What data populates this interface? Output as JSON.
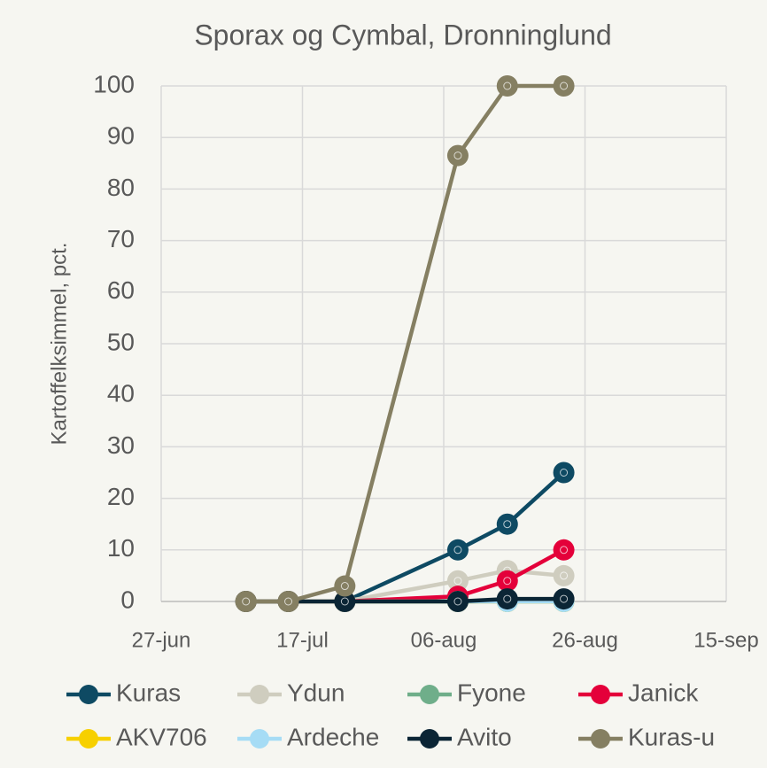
{
  "chart_data": {
    "type": "line",
    "title": "Sporax og Cymbal, Dronninglund",
    "y_label": "Kartoffelksimmel, pct.",
    "x": [
      "09-jul",
      "15-jul",
      "23-jul",
      "08-aug",
      "15-aug",
      "23-aug"
    ],
    "series": [
      {
        "name": "Kuras",
        "color": "#0e4a63",
        "values": [
          0,
          0,
          0,
          10,
          15,
          25
        ]
      },
      {
        "name": "Ydun",
        "color": "#cfcdbf",
        "values": [
          0,
          0,
          0,
          4,
          6,
          5
        ]
      },
      {
        "name": "Fyone",
        "color": "#6fae8a",
        "values": [
          0,
          0,
          0,
          0,
          0,
          0
        ]
      },
      {
        "name": "Janick",
        "color": "#e4003a",
        "values": [
          0,
          0,
          0,
          1,
          4,
          10
        ]
      },
      {
        "name": "AKV706",
        "color": "#f7d000",
        "values": [
          0,
          0,
          0,
          0,
          0,
          0
        ]
      },
      {
        "name": "Ardeche",
        "color": "#a6dcf5",
        "values": [
          0,
          0,
          0,
          0,
          0,
          0
        ]
      },
      {
        "name": "Avito",
        "color": "#0b2535",
        "values": [
          0,
          0,
          0,
          0,
          0.5,
          0.5
        ]
      },
      {
        "name": "Kuras-u",
        "color": "#857f62",
        "values": [
          0,
          0,
          3,
          86.5,
          100,
          100
        ]
      }
    ],
    "xlim": [
      "27-jun",
      "15-sep"
    ],
    "xticks": [
      "27-jun",
      "17-jul",
      "06-aug",
      "26-aug",
      "15-sep"
    ],
    "ylim": [
      0,
      100
    ],
    "yticks": [
      0,
      10,
      20,
      30,
      40,
      50,
      60,
      70,
      80,
      90,
      100
    ],
    "grid": true,
    "legend": "bottom"
  }
}
